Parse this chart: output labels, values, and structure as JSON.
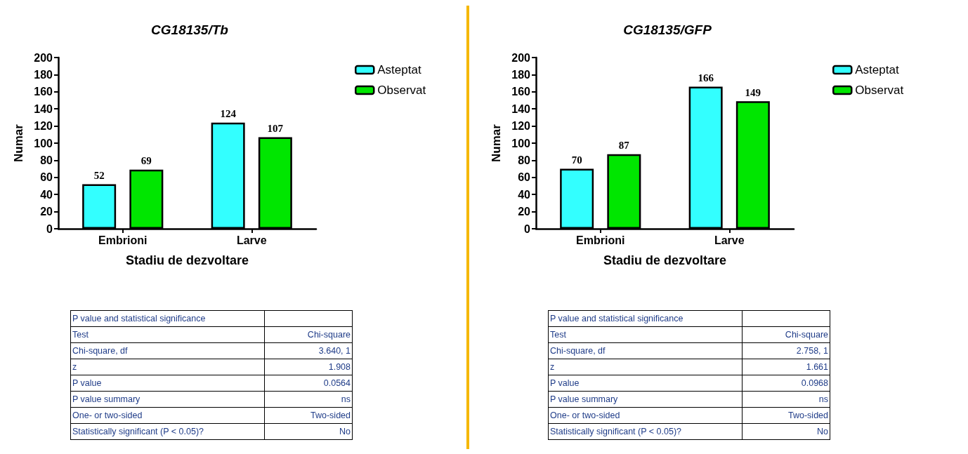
{
  "chart_data": [
    {
      "type": "bar",
      "title": "CG18135/Tb",
      "xlabel": "Stadiu de dezvoltare",
      "ylabel": "Numar",
      "categories": [
        "Embrioni",
        "Larve"
      ],
      "series": [
        {
          "name": "Asteptat",
          "color": "#33ffff",
          "values": [
            52,
            124
          ]
        },
        {
          "name": "Observat",
          "color": "#00e600",
          "values": [
            69,
            107
          ]
        }
      ],
      "ylim": [
        0,
        200
      ],
      "yticks": [
        0,
        20,
        40,
        60,
        80,
        100,
        120,
        140,
        160,
        180,
        200
      ],
      "grid": false,
      "legend": "top right",
      "data_labels": true,
      "annotations": [
        "P value and statistical significance",
        "Test",
        "Chi-square",
        "Chi-square, df",
        "3.640, 1",
        "z",
        "1.908",
        "P value",
        "0.0564",
        "P value summary",
        "ns",
        "One- or two-sided",
        "Two-sided",
        "Statistically significant (P < 0.05)?",
        "No"
      ]
    },
    {
      "type": "bar",
      "title": "CG18135/GFP",
      "xlabel": "Stadiu de dezvoltare",
      "ylabel": "Numar",
      "categories": [
        "Embrioni",
        "Larve"
      ],
      "series": [
        {
          "name": "Asteptat",
          "color": "#33ffff",
          "values": [
            70,
            166
          ]
        },
        {
          "name": "Observat",
          "color": "#00e600",
          "values": [
            87,
            149
          ]
        }
      ],
      "ylim": [
        0,
        200
      ],
      "yticks": [
        0,
        20,
        40,
        60,
        80,
        100,
        120,
        140,
        160,
        180,
        200
      ],
      "grid": false,
      "legend": "top right",
      "data_labels": true,
      "annotations": [
        "P value and statistical significance",
        "Test",
        "Chi-square",
        "Chi-square, df",
        "2.758, 1",
        "z",
        "1.661",
        "P value",
        "0.0968",
        "P value summary",
        "ns",
        "One- or two-sided",
        "Two-sided",
        "Statistically significant (P < 0.05)?",
        "No"
      ]
    }
  ]
}
